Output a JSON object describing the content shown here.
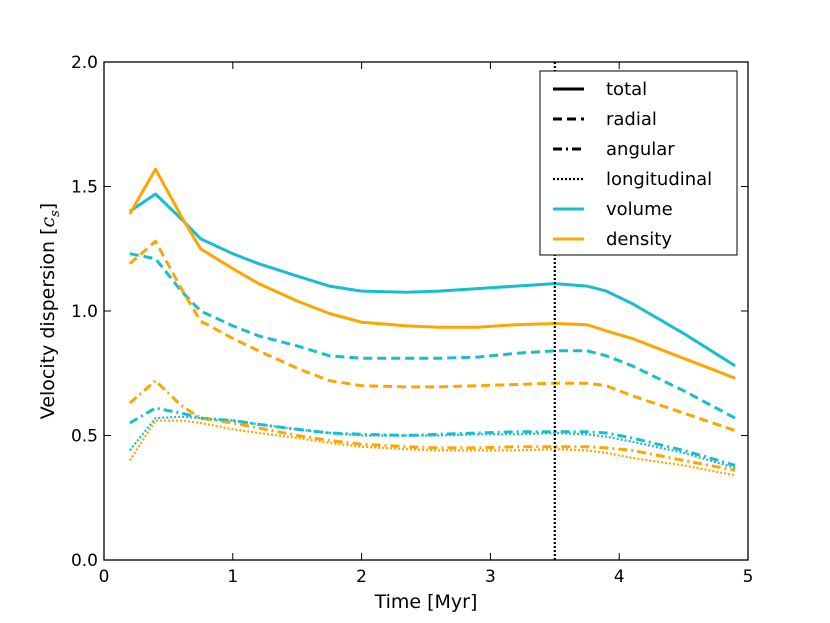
{
  "chart_data": {
    "type": "line",
    "title": "",
    "xlabel": "Time [Myr]",
    "ylabel": "Velocity dispersion [c_s]",
    "ylabel_prefix": "Velocity dispersion [",
    "ylabel_symbol": "c",
    "ylabel_subscript": "s",
    "ylabel_suffix": "]",
    "xlim": [
      0,
      5
    ],
    "ylim": [
      0.0,
      2.0
    ],
    "xticks": [
      0,
      1,
      2,
      3,
      4,
      5
    ],
    "xtick_labels": [
      "0",
      "1",
      "2",
      "3",
      "4",
      "5"
    ],
    "yticks": [
      0.0,
      0.5,
      1.0,
      1.5,
      2.0
    ],
    "ytick_labels": [
      "0.0",
      "0.5",
      "1.0",
      "1.5",
      "2.0"
    ],
    "grid": false,
    "vline": {
      "x": 3.5,
      "style": "dotted",
      "color": "#000000"
    },
    "legend": {
      "position": "top-right",
      "entries": [
        {
          "label": "total",
          "style": "solid",
          "color": "#000000"
        },
        {
          "label": "radial",
          "style": "dashed",
          "color": "#000000"
        },
        {
          "label": "angular",
          "style": "dashdot",
          "color": "#000000"
        },
        {
          "label": "longitudinal",
          "style": "dotted",
          "color": "#000000"
        },
        {
          "label": "volume",
          "style": "solid",
          "color": "#17BECF"
        },
        {
          "label": "density",
          "style": "solid",
          "color": "#FFA500"
        }
      ]
    },
    "colors": {
      "volume": "#17BECF",
      "density": "#FFA500"
    },
    "x": [
      0.2,
      0.4,
      0.6,
      0.75,
      1.0,
      1.2,
      1.5,
      1.75,
      2.0,
      2.35,
      2.6,
      2.9,
      3.2,
      3.5,
      3.75,
      3.9,
      4.1,
      4.5,
      4.9
    ],
    "series": [
      {
        "name": "volume total",
        "weighting": "volume",
        "component": "total",
        "style": "solid",
        "values": [
          1.4,
          1.47,
          1.37,
          1.29,
          1.23,
          1.19,
          1.14,
          1.1,
          1.08,
          1.075,
          1.08,
          1.09,
          1.1,
          1.11,
          1.1,
          1.08,
          1.03,
          0.91,
          0.78
        ]
      },
      {
        "name": "density total",
        "weighting": "density",
        "component": "total",
        "style": "solid",
        "values": [
          1.39,
          1.57,
          1.38,
          1.25,
          1.17,
          1.11,
          1.04,
          0.99,
          0.955,
          0.94,
          0.935,
          0.935,
          0.945,
          0.95,
          0.945,
          0.92,
          0.89,
          0.81,
          0.73
        ]
      },
      {
        "name": "volume radial",
        "weighting": "volume",
        "component": "radial",
        "style": "dashed",
        "values": [
          1.23,
          1.21,
          1.08,
          1.0,
          0.94,
          0.9,
          0.86,
          0.82,
          0.81,
          0.81,
          0.81,
          0.815,
          0.83,
          0.84,
          0.84,
          0.82,
          0.78,
          0.68,
          0.57
        ]
      },
      {
        "name": "density radial",
        "weighting": "density",
        "component": "radial",
        "style": "dashed",
        "values": [
          1.19,
          1.28,
          1.09,
          0.96,
          0.89,
          0.84,
          0.77,
          0.72,
          0.7,
          0.695,
          0.695,
          0.7,
          0.705,
          0.71,
          0.71,
          0.7,
          0.66,
          0.59,
          0.52
        ]
      },
      {
        "name": "volume angular",
        "weighting": "volume",
        "component": "angular",
        "style": "dashdot",
        "values": [
          0.55,
          0.61,
          0.59,
          0.57,
          0.56,
          0.545,
          0.525,
          0.51,
          0.505,
          0.5,
          0.505,
          0.51,
          0.515,
          0.515,
          0.515,
          0.51,
          0.49,
          0.44,
          0.38
        ]
      },
      {
        "name": "density angular",
        "weighting": "density",
        "component": "angular",
        "style": "dashdot",
        "values": [
          0.63,
          0.72,
          0.62,
          0.57,
          0.55,
          0.53,
          0.5,
          0.48,
          0.465,
          0.455,
          0.45,
          0.45,
          0.455,
          0.455,
          0.455,
          0.45,
          0.44,
          0.4,
          0.36
        ]
      },
      {
        "name": "volume longitudinal",
        "weighting": "volume",
        "component": "longitudinal",
        "style": "dotted",
        "values": [
          0.44,
          0.57,
          0.575,
          0.57,
          0.56,
          0.545,
          0.525,
          0.51,
          0.5,
          0.5,
          0.5,
          0.505,
          0.505,
          0.51,
          0.505,
          0.495,
          0.475,
          0.43,
          0.37
        ]
      },
      {
        "name": "density longitudinal",
        "weighting": "density",
        "component": "longitudinal",
        "style": "dotted",
        "values": [
          0.4,
          0.56,
          0.56,
          0.55,
          0.525,
          0.51,
          0.49,
          0.47,
          0.455,
          0.445,
          0.44,
          0.44,
          0.44,
          0.445,
          0.44,
          0.43,
          0.41,
          0.38,
          0.34
        ]
      }
    ]
  }
}
